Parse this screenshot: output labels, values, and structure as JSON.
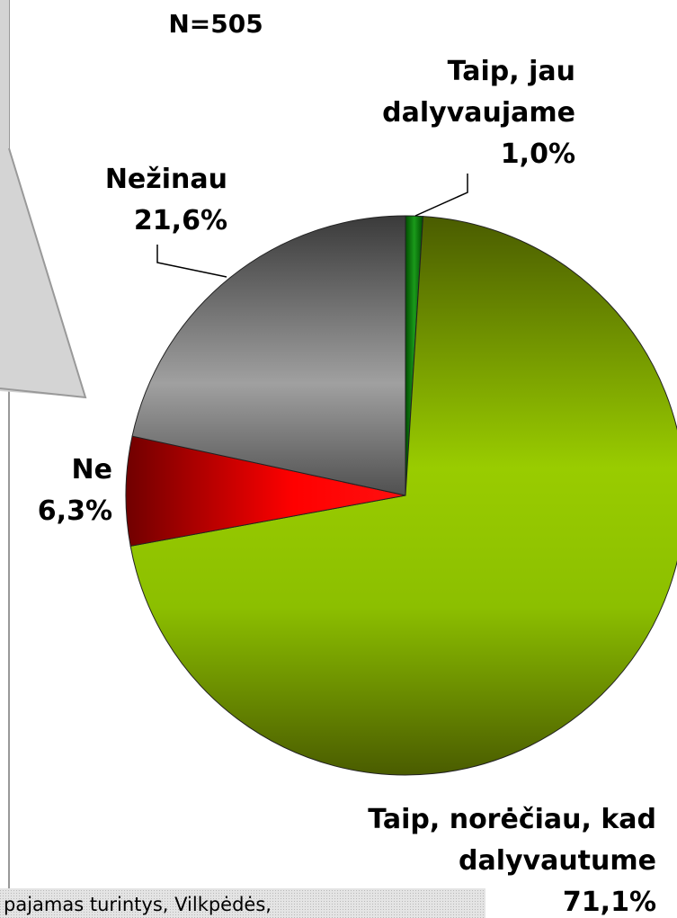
{
  "chart_data": {
    "type": "pie",
    "title": "N=505",
    "categories": [
      "Taip, jau dalyvaujame",
      "Taip, norėčiau, kad dalyvautume",
      "Ne",
      "Nežinau"
    ],
    "values": [
      1.0,
      71.1,
      6.3,
      21.6
    ],
    "value_labels": [
      "1,0%",
      "71,1%",
      "6,3%",
      "21,6%"
    ],
    "colors": [
      "#0a7a0a",
      "#8cbf00",
      "#e00000",
      "#808080"
    ],
    "footnote": "pajamas turintys, Vilkpėdės,"
  }
}
